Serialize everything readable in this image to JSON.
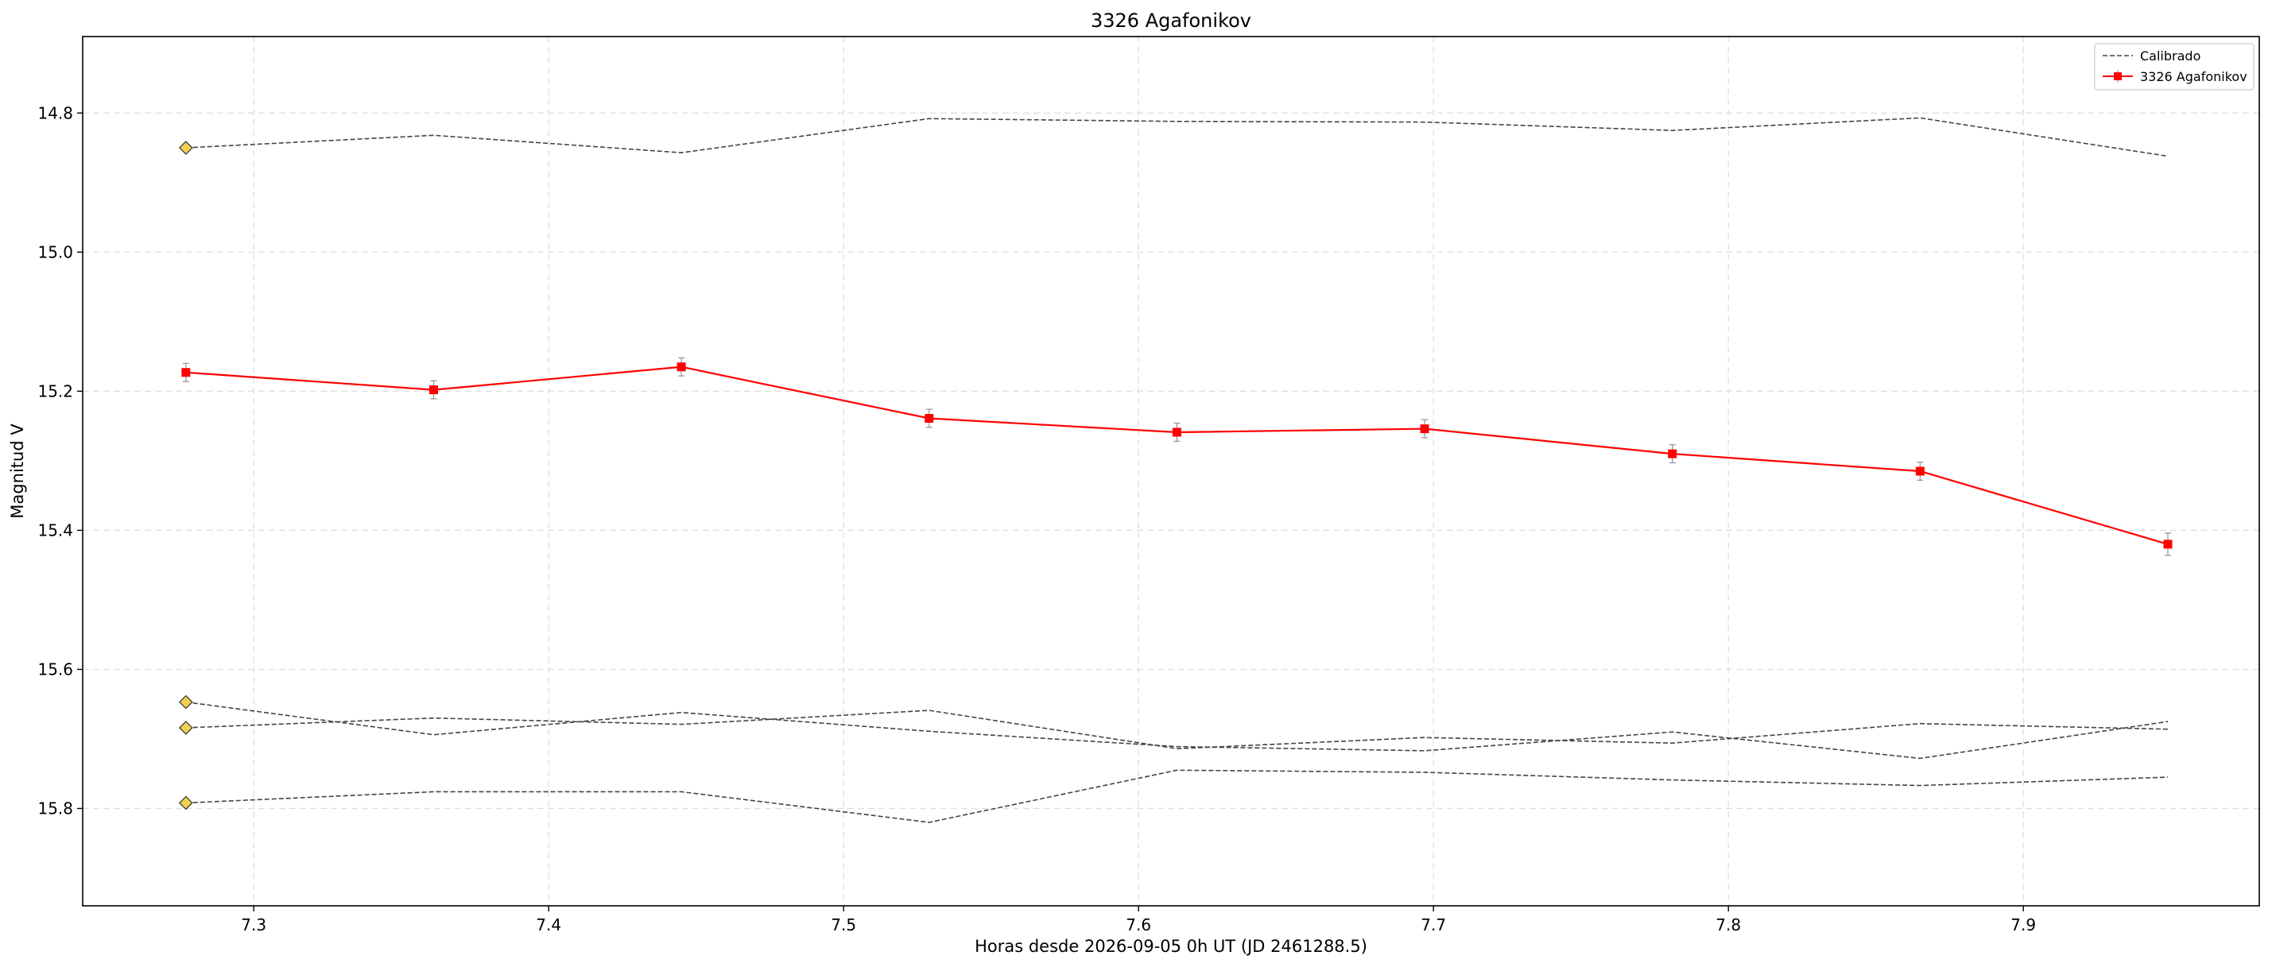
{
  "chart_data": {
    "type": "line",
    "title": "3326 Agafonikov",
    "xlabel": "Horas desde 2026-09-05 0h UT (JD 2461288.5)",
    "ylabel": "Magnitud V",
    "xlim": [
      7.242,
      7.98
    ],
    "ylim": [
      15.94,
      14.69
    ],
    "y_inverted": true,
    "grid": true,
    "legend_position": "top-right",
    "x_ticks": [
      7.3,
      7.4,
      7.5,
      7.6,
      7.7,
      7.8,
      7.9
    ],
    "x_tick_labels": [
      "7.3",
      "7.4",
      "7.5",
      "7.6",
      "7.7",
      "7.8",
      "7.9"
    ],
    "y_ticks": [
      14.8,
      15.0,
      15.2,
      15.4,
      15.6,
      15.8
    ],
    "y_tick_labels": [
      "14.8",
      "15.0",
      "15.2",
      "15.4",
      "15.6",
      "15.8"
    ],
    "x": [
      7.277,
      7.361,
      7.445,
      7.529,
      7.613,
      7.697,
      7.781,
      7.865,
      7.949
    ],
    "target": {
      "name": "3326 Agafonikov",
      "color": "#ff0000",
      "values": [
        15.173,
        15.198,
        15.165,
        15.239,
        15.259,
        15.254,
        15.29,
        15.315,
        15.42
      ],
      "errors": [
        0.013,
        0.013,
        0.013,
        0.013,
        0.013,
        0.013,
        0.013,
        0.013,
        0.016
      ]
    },
    "calibrated": {
      "name": "Calibrado",
      "color": "#444444",
      "marker_color": "#f0d050",
      "series": [
        {
          "values": [
            14.85,
            14.832,
            14.857,
            14.808,
            14.812,
            14.813,
            14.825,
            14.807,
            14.862
          ]
        },
        {
          "values": [
            15.647,
            15.694,
            15.662,
            15.689,
            15.711,
            15.717,
            15.69,
            15.728,
            15.675
          ]
        },
        {
          "values": [
            15.684,
            15.67,
            15.679,
            15.659,
            15.714,
            15.698,
            15.706,
            15.678,
            15.686
          ]
        },
        {
          "values": [
            15.792,
            15.776,
            15.776,
            15.82,
            15.745,
            15.748,
            15.759,
            15.767,
            15.755
          ]
        }
      ]
    }
  }
}
